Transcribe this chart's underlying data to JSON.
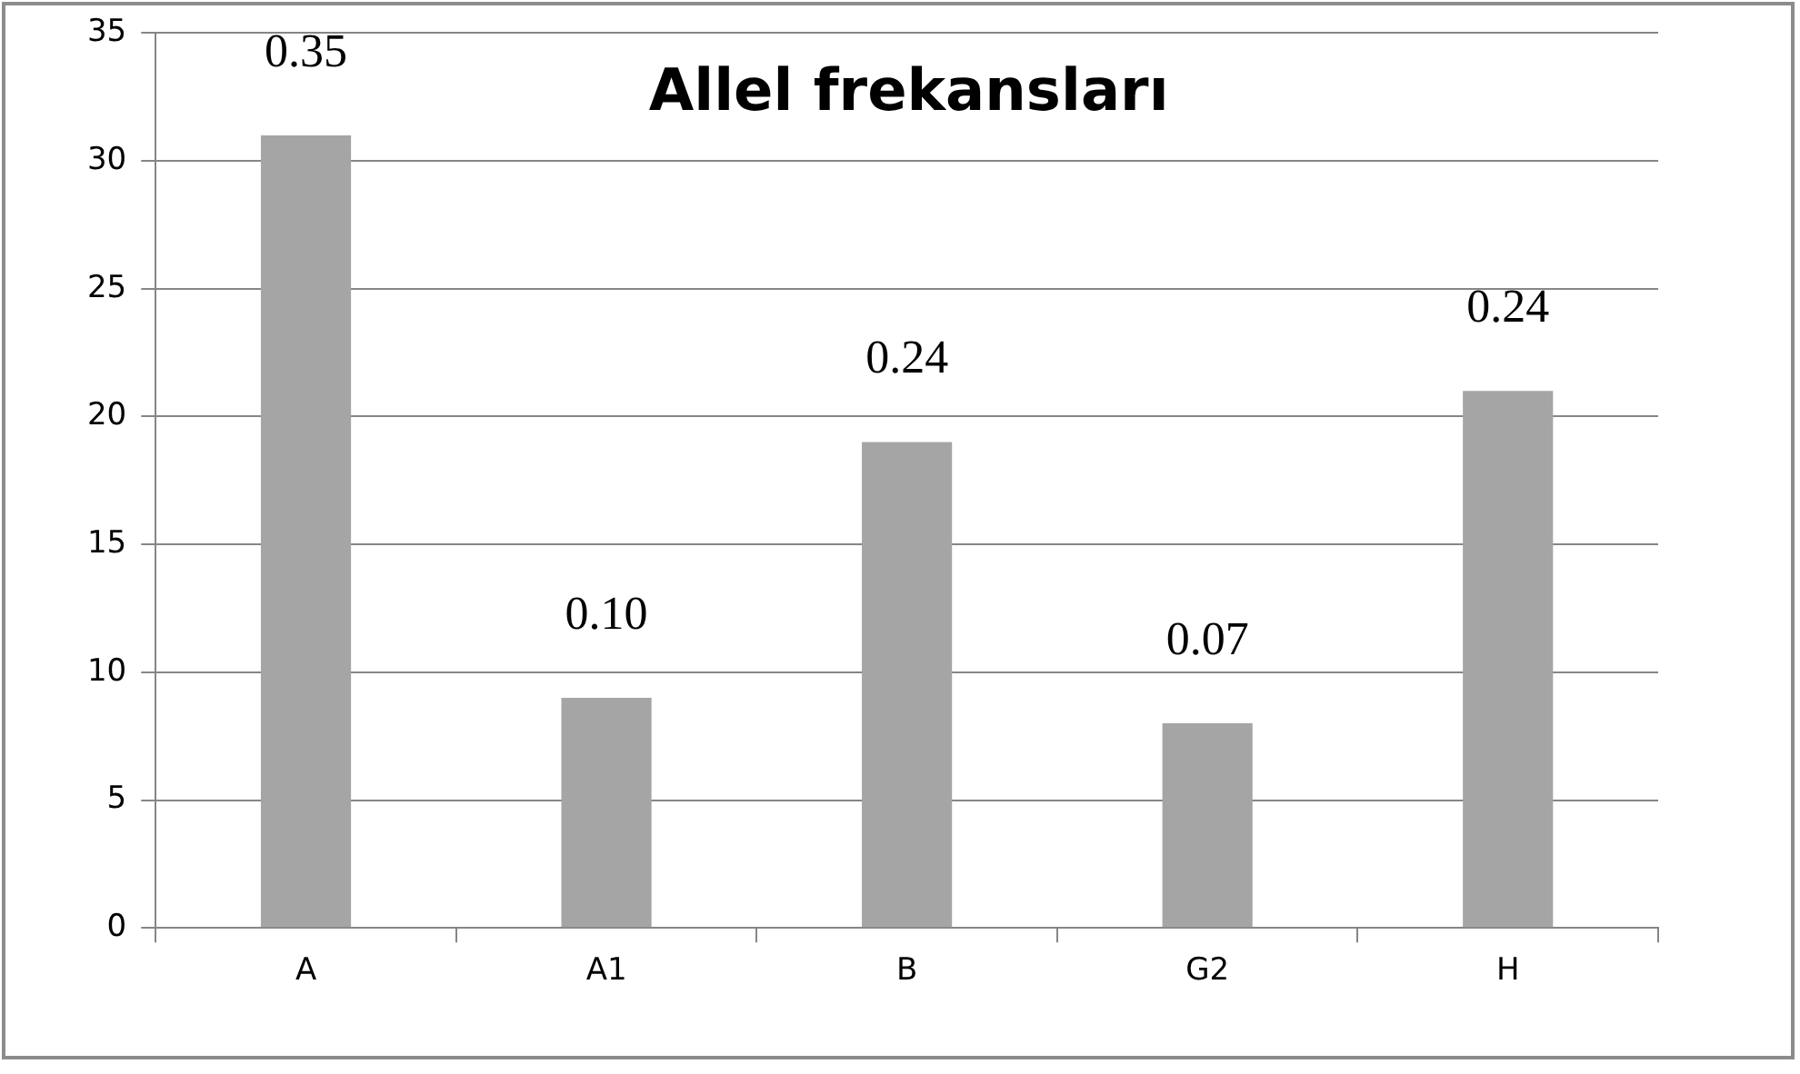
{
  "chart_data": {
    "type": "bar",
    "title": "Allel frekansları",
    "categories": [
      "A",
      "A1",
      "B",
      "G2",
      "H"
    ],
    "values": [
      31,
      9,
      19,
      8,
      21
    ],
    "annotations": [
      "0.35",
      "0.10",
      "0.24",
      "0.07",
      "0.24"
    ],
    "color": "#a5a5a5",
    "ylim": [
      0,
      35
    ],
    "yticks": [
      0,
      5,
      10,
      15,
      20,
      25,
      30,
      35
    ],
    "grid": "y",
    "legend": false
  }
}
